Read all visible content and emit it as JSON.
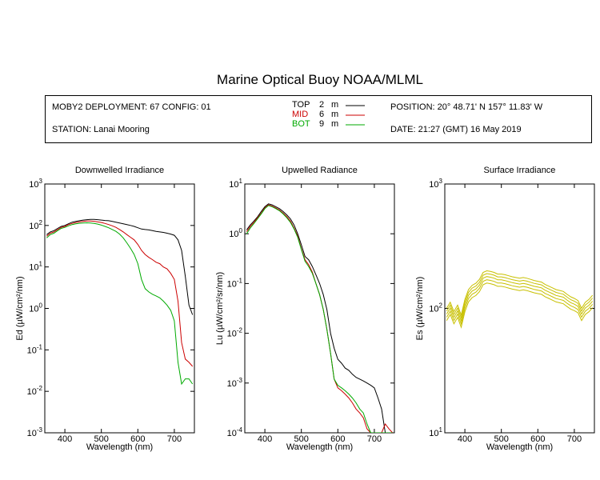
{
  "title": "Marine Optical Buoy NOAA/MLML",
  "info": {
    "deployment": "MOBY2 DEPLOYMENT: 67 CONFIG: 01",
    "station": "STATION: Lanai Mooring",
    "position": "POSITION: 20° 48.71' N   157° 11.83' W",
    "date": "DATE: 21:27 (GMT) 16 May 2019"
  },
  "legend": [
    {
      "name": "TOP",
      "depth": "2",
      "unit": "m",
      "color": "#000000"
    },
    {
      "name": "MID",
      "depth": "6",
      "unit": "m",
      "color": "#cc0000"
    },
    {
      "name": "BOT",
      "depth": "9",
      "unit": "m",
      "color": "#00aa00"
    }
  ],
  "chart_data": [
    {
      "type": "line",
      "title": "Downwelled Irradiance",
      "xlabel": "Wavelength (nm)",
      "ylabel": "Ed  (µW/cm²/nm)",
      "xlim": [
        345,
        755
      ],
      "ylim": [
        0.001,
        1000
      ],
      "yscale": "log",
      "xticks": [
        400,
        500,
        600,
        700
      ],
      "yticks": [
        {
          "value": 0.001,
          "base": "10",
          "exp": "-3"
        },
        {
          "value": 0.01,
          "base": "10",
          "exp": "-2"
        },
        {
          "value": 0.1,
          "base": "10",
          "exp": "-1"
        },
        {
          "value": 1,
          "base": "10",
          "exp": "0"
        },
        {
          "value": 10,
          "base": "10",
          "exp": "1"
        },
        {
          "value": 100,
          "base": "10",
          "exp": "2"
        },
        {
          "value": 1000,
          "base": "10",
          "exp": "3"
        }
      ],
      "series": [
        {
          "name": "TOP",
          "color": "#000000",
          "x": [
            350,
            360,
            370,
            380,
            390,
            400,
            410,
            420,
            430,
            440,
            450,
            460,
            470,
            480,
            490,
            500,
            510,
            520,
            530,
            540,
            550,
            560,
            570,
            580,
            590,
            600,
            610,
            620,
            630,
            640,
            650,
            660,
            670,
            680,
            690,
            700,
            710,
            720,
            730,
            740,
            750
          ],
          "y": [
            60,
            70,
            75,
            85,
            95,
            100,
            110,
            120,
            125,
            130,
            135,
            138,
            140,
            140,
            138,
            135,
            132,
            130,
            125,
            120,
            115,
            110,
            105,
            100,
            95,
            88,
            82,
            80,
            78,
            75,
            72,
            70,
            68,
            65,
            62,
            58,
            45,
            25,
            6,
            1.2,
            0.7
          ]
        },
        {
          "name": "MID",
          "color": "#cc0000",
          "x": [
            350,
            360,
            370,
            380,
            390,
            400,
            410,
            420,
            430,
            440,
            450,
            460,
            470,
            480,
            490,
            500,
            510,
            520,
            530,
            540,
            550,
            560,
            570,
            580,
            590,
            600,
            610,
            620,
            630,
            640,
            650,
            660,
            670,
            680,
            690,
            700,
            710,
            720,
            730,
            740,
            750
          ],
          "y": [
            55,
            65,
            70,
            80,
            90,
            95,
            105,
            112,
            118,
            122,
            125,
            128,
            128,
            126,
            122,
            118,
            112,
            105,
            98,
            90,
            80,
            70,
            60,
            52,
            45,
            35,
            25,
            20,
            17,
            15,
            13,
            12,
            10,
            9,
            7,
            5,
            1.5,
            0.15,
            0.06,
            0.05,
            0.04
          ]
        },
        {
          "name": "BOT",
          "color": "#00aa00",
          "x": [
            350,
            360,
            370,
            380,
            390,
            400,
            410,
            420,
            430,
            440,
            450,
            460,
            470,
            480,
            490,
            500,
            510,
            520,
            530,
            540,
            550,
            560,
            570,
            580,
            590,
            600,
            610,
            620,
            630,
            640,
            650,
            660,
            670,
            680,
            690,
            700,
            710,
            720,
            730,
            740,
            750
          ],
          "y": [
            50,
            60,
            65,
            75,
            85,
            90,
            98,
            105,
            110,
            113,
            115,
            116,
            115,
            112,
            108,
            102,
            95,
            88,
            80,
            72,
            62,
            50,
            38,
            28,
            20,
            12,
            5,
            3,
            2.5,
            2.2,
            2,
            1.8,
            1.5,
            1.2,
            0.9,
            0.5,
            0.05,
            0.015,
            0.02,
            0.02,
            0.015
          ]
        }
      ]
    },
    {
      "type": "line",
      "title": "Upwelled Radiance",
      "xlabel": "Wavelength (nm)",
      "ylabel": "Lu  (µW/cm²/sr/nm)",
      "xlim": [
        345,
        755
      ],
      "ylim": [
        0.0001,
        10
      ],
      "yscale": "log",
      "xticks": [
        400,
        500,
        600,
        700
      ],
      "yticks": [
        {
          "value": 0.0001,
          "base": "10",
          "exp": "-4"
        },
        {
          "value": 0.001,
          "base": "10",
          "exp": "-3"
        },
        {
          "value": 0.01,
          "base": "10",
          "exp": "-2"
        },
        {
          "value": 0.1,
          "base": "10",
          "exp": "-1"
        },
        {
          "value": 1,
          "base": "10",
          "exp": "0"
        },
        {
          "value": 10,
          "base": "10",
          "exp": "1"
        }
      ],
      "series": [
        {
          "name": "TOP",
          "color": "#000000",
          "x": [
            350,
            360,
            370,
            380,
            390,
            400,
            410,
            420,
            430,
            440,
            450,
            460,
            470,
            480,
            490,
            500,
            510,
            520,
            530,
            540,
            550,
            560,
            570,
            580,
            590,
            600,
            610,
            620,
            630,
            640,
            650,
            660,
            670,
            680,
            690,
            700,
            710,
            720,
            730,
            740,
            750
          ],
          "y": [
            1.2,
            1.5,
            1.8,
            2.2,
            2.8,
            3.5,
            4.0,
            3.8,
            3.5,
            3.2,
            2.8,
            2.4,
            2.0,
            1.5,
            1.0,
            0.6,
            0.35,
            0.3,
            0.22,
            0.15,
            0.1,
            0.06,
            0.03,
            0.01,
            0.005,
            0.003,
            0.0025,
            0.002,
            0.0018,
            0.0015,
            0.0013,
            0.0012,
            0.0011,
            0.001,
            0.0009,
            0.0008,
            0.0005,
            0.0003,
            0.0001,
            0.0001,
            0.0001
          ]
        },
        {
          "name": "MID",
          "color": "#cc0000",
          "x": [
            350,
            360,
            370,
            380,
            390,
            400,
            410,
            420,
            430,
            440,
            450,
            460,
            470,
            480,
            490,
            500,
            510,
            520,
            530,
            540,
            550,
            560,
            570,
            580,
            590,
            600,
            610,
            620,
            630,
            640,
            650,
            660,
            670,
            680,
            690,
            700,
            710,
            720,
            730,
            740,
            750
          ],
          "y": [
            1.1,
            1.4,
            1.7,
            2.1,
            2.6,
            3.3,
            3.8,
            3.6,
            3.3,
            3.0,
            2.6,
            2.2,
            1.8,
            1.3,
            0.9,
            0.5,
            0.3,
            0.24,
            0.17,
            0.1,
            0.06,
            0.03,
            0.012,
            0.004,
            0.0012,
            0.0008,
            0.0007,
            0.0006,
            0.0005,
            0.0004,
            0.0003,
            0.00025,
            0.0002,
            0.00012,
            0.0001,
            0.0001,
            0.0001,
            0.0001,
            0.00015,
            0.00012,
            0.0001
          ]
        },
        {
          "name": "BOT",
          "color": "#00aa00",
          "x": [
            350,
            360,
            370,
            380,
            390,
            400,
            410,
            420,
            430,
            440,
            450,
            460,
            470,
            480,
            490,
            500,
            510,
            520,
            530,
            540,
            550,
            560,
            570,
            580,
            590,
            600,
            610,
            620,
            630,
            640,
            650,
            660,
            670,
            680,
            690,
            700,
            710,
            720,
            730,
            740,
            750
          ],
          "y": [
            1.0,
            1.3,
            1.6,
            2.0,
            2.5,
            3.2,
            3.7,
            3.5,
            3.2,
            2.9,
            2.5,
            2.1,
            1.7,
            1.25,
            0.85,
            0.48,
            0.28,
            0.22,
            0.16,
            0.1,
            0.06,
            0.03,
            0.012,
            0.004,
            0.0012,
            0.0009,
            0.0008,
            0.0007,
            0.0006,
            0.0005,
            0.0004,
            0.0003,
            0.00025,
            0.00015,
            0.0001,
            0.0001,
            0.0001,
            0.0001,
            0.0001,
            0.0001,
            0.0001
          ]
        }
      ]
    },
    {
      "type": "line",
      "title": "Surface Irradiance",
      "xlabel": "Wavelength (nm)",
      "ylabel": "Es  (µW/cm²/nm)",
      "xlim": [
        345,
        755
      ],
      "ylim": [
        10,
        1000
      ],
      "yscale": "log",
      "xticks": [
        400,
        500,
        600,
        700
      ],
      "yticks": [
        {
          "value": 10,
          "base": "10",
          "exp": "1"
        },
        {
          "value": 100,
          "base": "10",
          "exp": "2"
        },
        {
          "value": 1000,
          "base": "10",
          "exp": "3"
        }
      ],
      "series": [
        {
          "name": "Es",
          "color": "#c8c000",
          "x": [
            350,
            360,
            370,
            380,
            390,
            400,
            410,
            420,
            430,
            440,
            450,
            460,
            470,
            480,
            490,
            500,
            510,
            520,
            530,
            540,
            550,
            560,
            570,
            580,
            590,
            600,
            610,
            620,
            630,
            640,
            650,
            660,
            670,
            680,
            690,
            700,
            710,
            720,
            730,
            740,
            750
          ],
          "y": [
            85,
            95,
            80,
            90,
            75,
            100,
            120,
            130,
            135,
            145,
            165,
            170,
            168,
            165,
            160,
            160,
            158,
            155,
            152,
            150,
            148,
            150,
            148,
            145,
            142,
            140,
            138,
            132,
            128,
            124,
            120,
            118,
            116,
            110,
            105,
            102,
            98,
            85,
            95,
            100,
            108
          ]
        }
      ]
    }
  ]
}
